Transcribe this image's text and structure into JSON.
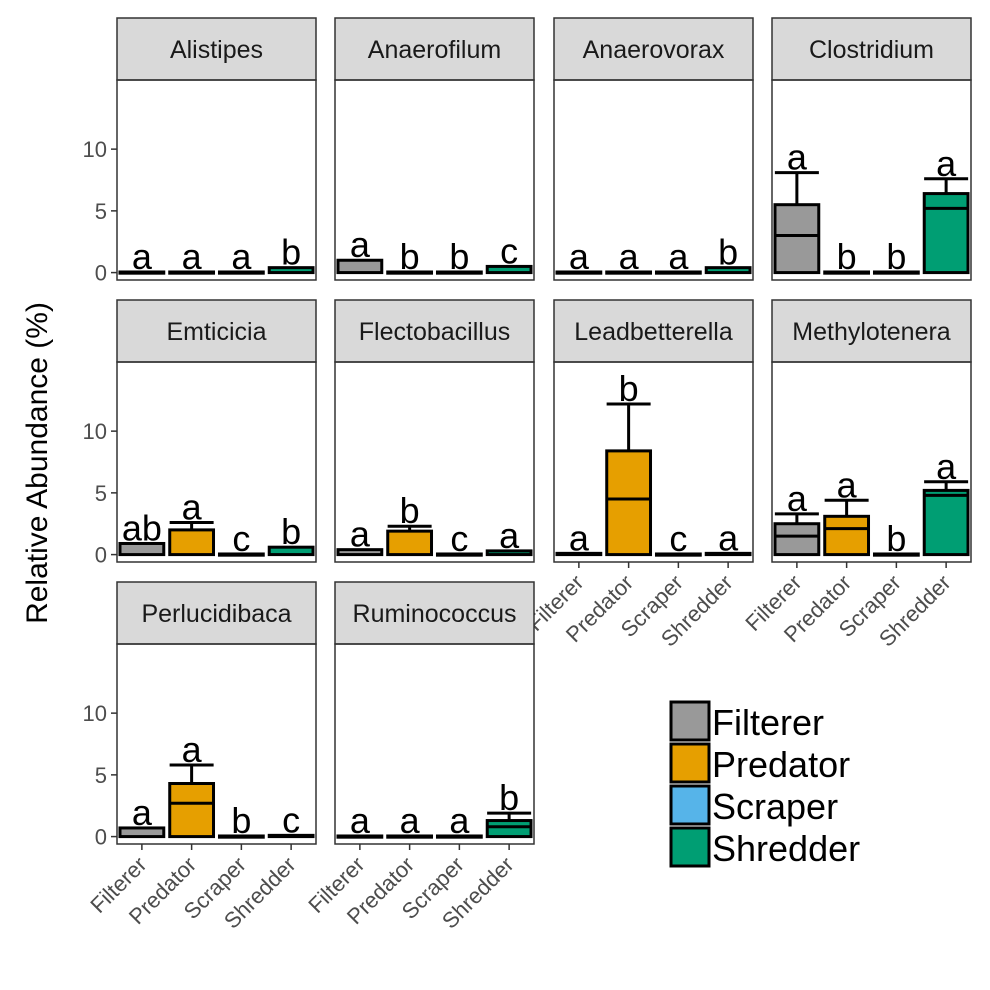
{
  "chart_data": {
    "type": "bar",
    "ylabel": "Relative Abundance (%)",
    "xlabel": "",
    "ylim": [
      -0.6,
      15.6
    ],
    "yticks": [
      0,
      5,
      10
    ],
    "categories": [
      "Filterer",
      "Predator",
      "Scraper",
      "Shredder"
    ],
    "colors": {
      "Filterer": "#999999",
      "Predator": "#E69F00",
      "Scraper": "#56B4E9",
      "Shredder": "#009E73"
    },
    "legend": {
      "position": "bottom-right",
      "entries": [
        "Filterer",
        "Predator",
        "Scraper",
        "Shredder"
      ]
    },
    "panels": [
      {
        "name": "Alistipes",
        "values": [
          0.05,
          0.05,
          0.05,
          0.4
        ],
        "medians": [
          null,
          null,
          null,
          null
        ],
        "errors": [
          null,
          null,
          null,
          null
        ],
        "letters": [
          "a",
          "a",
          "a",
          "b"
        ]
      },
      {
        "name": "Anaerofilum",
        "values": [
          1.0,
          0.05,
          0.05,
          0.5
        ],
        "medians": [
          null,
          null,
          null,
          null
        ],
        "errors": [
          null,
          null,
          null,
          null
        ],
        "letters": [
          "a",
          "b",
          "b",
          "c"
        ]
      },
      {
        "name": "Anaerovorax",
        "values": [
          0.05,
          0.05,
          0.05,
          0.4
        ],
        "medians": [
          null,
          null,
          null,
          null
        ],
        "errors": [
          null,
          null,
          null,
          null
        ],
        "letters": [
          "a",
          "a",
          "a",
          "b"
        ]
      },
      {
        "name": "Clostridium",
        "values": [
          5.5,
          0.05,
          0.05,
          6.4
        ],
        "medians": [
          3.0,
          null,
          null,
          5.2
        ],
        "errors": [
          8.1,
          null,
          null,
          7.6
        ],
        "letters": [
          "a",
          "b",
          "b",
          "a"
        ]
      },
      {
        "name": "Emticicia",
        "values": [
          0.9,
          2.0,
          0.05,
          0.6
        ],
        "medians": [
          null,
          null,
          null,
          null
        ],
        "errors": [
          null,
          2.6,
          null,
          null
        ],
        "letters": [
          "ab",
          "a",
          "c",
          "b"
        ]
      },
      {
        "name": "Flectobacillus",
        "values": [
          0.4,
          1.9,
          0.05,
          0.3
        ],
        "medians": [
          null,
          null,
          null,
          null
        ],
        "errors": [
          null,
          2.3,
          null,
          null
        ],
        "letters": [
          "a",
          "b",
          "c",
          "a"
        ]
      },
      {
        "name": "Leadbetterella",
        "values": [
          0.1,
          8.4,
          0.05,
          0.1
        ],
        "medians": [
          null,
          4.5,
          null,
          null
        ],
        "errors": [
          null,
          12.2,
          null,
          null
        ],
        "letters": [
          "a",
          "b",
          "c",
          "a"
        ]
      },
      {
        "name": "Methylotenera",
        "values": [
          2.5,
          3.1,
          0.05,
          5.2
        ],
        "medians": [
          1.5,
          2.1,
          null,
          4.8
        ],
        "errors": [
          3.3,
          4.4,
          null,
          5.9
        ],
        "letters": [
          "a",
          "a",
          "b",
          "a"
        ]
      },
      {
        "name": "Perlucidibaca",
        "values": [
          0.7,
          4.3,
          0.05,
          0.1
        ],
        "medians": [
          null,
          2.7,
          null,
          null
        ],
        "errors": [
          null,
          5.8,
          null,
          null
        ],
        "letters": [
          "a",
          "a",
          "b",
          "c"
        ]
      },
      {
        "name": "Ruminococcus",
        "values": [
          0.05,
          0.05,
          0.05,
          1.3
        ],
        "medians": [
          null,
          null,
          null,
          0.8
        ],
        "errors": [
          null,
          null,
          null,
          1.9
        ],
        "letters": [
          "a",
          "a",
          "a",
          "b"
        ]
      }
    ]
  }
}
